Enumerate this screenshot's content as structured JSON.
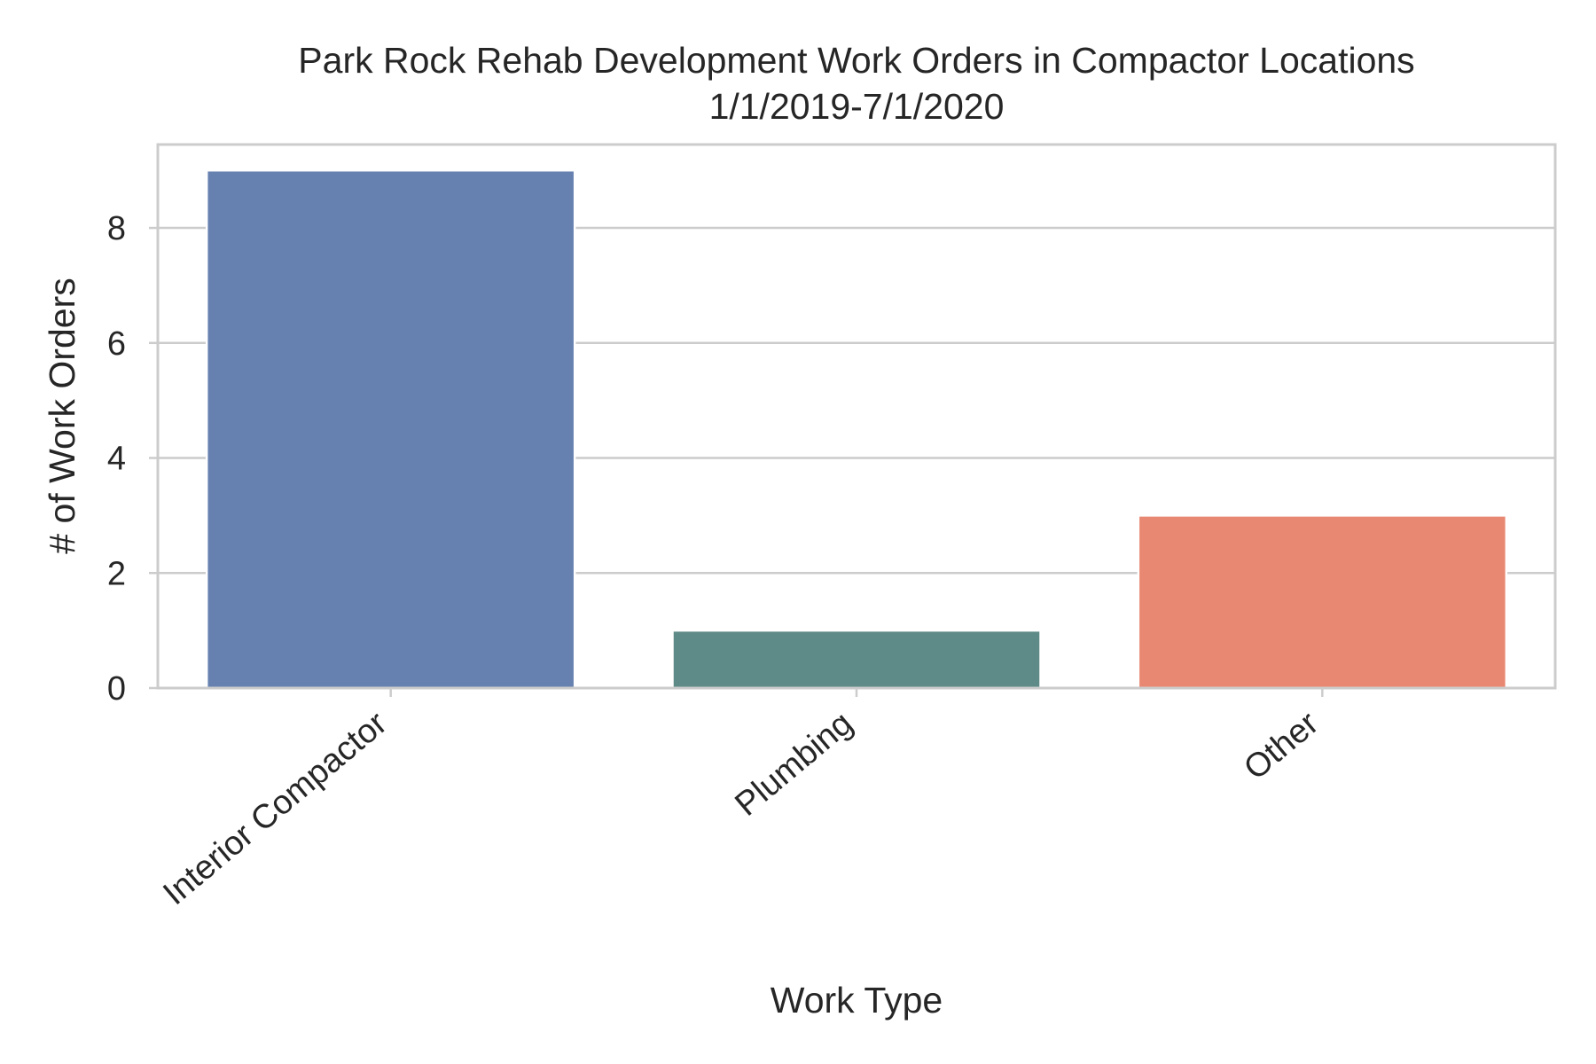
{
  "chart_data": {
    "type": "bar",
    "title": "Park Rock Rehab Development Work Orders in Compactor Locations",
    "subtitle": "1/1/2019-7/1/2020",
    "xlabel": "Work Type",
    "ylabel": "# of Work Orders",
    "categories": [
      "Interior Compactor",
      "Plumbing",
      "Other"
    ],
    "values": [
      9,
      1,
      3
    ],
    "colors": [
      "#6681b0",
      "#5e8a87",
      "#e98872"
    ],
    "ylim": [
      0,
      9.45
    ],
    "yticks": [
      0,
      2,
      4,
      6,
      8
    ],
    "ytick_labels": [
      "0",
      "2",
      "4",
      "6",
      "8"
    ],
    "grid": true,
    "legend": "none"
  }
}
